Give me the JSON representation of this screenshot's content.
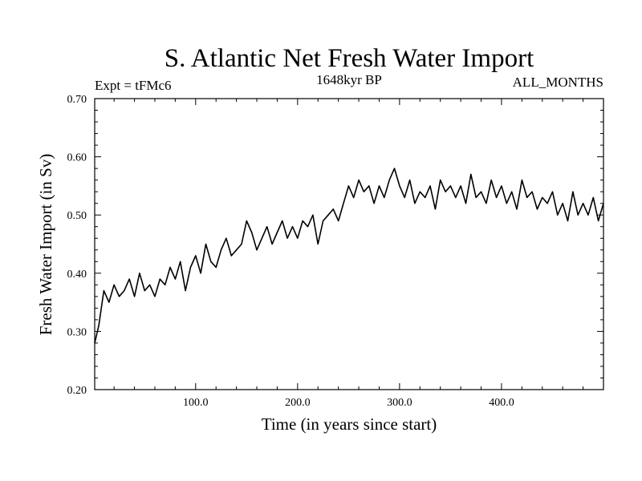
{
  "chart_data": {
    "type": "line",
    "title": "S. Atlantic Net Fresh Water Import",
    "subtitle_left": "Expt = tFMc6",
    "subtitle_center": "1648kyr BP",
    "subtitle_right": "ALL_MONTHS",
    "xlabel": "Time (in years since start)",
    "ylabel": "Fresh Water Import (in Sv)",
    "xlim": [
      1,
      500
    ],
    "ylim": [
      0.2,
      0.7
    ],
    "x_ticks": [
      100,
      200,
      300,
      400
    ],
    "x_tick_labels": [
      "100.0",
      "200.0",
      "300.0",
      "400.0"
    ],
    "y_ticks": [
      0.2,
      0.3,
      0.4,
      0.5,
      0.6,
      0.7
    ],
    "y_tick_labels": [
      "0.20",
      "0.30",
      "0.40",
      "0.50",
      "0.60",
      "0.70"
    ],
    "series": [
      {
        "name": "Fresh Water Import",
        "color": "#000000",
        "x": [
          1,
          5,
          10,
          15,
          20,
          25,
          30,
          35,
          40,
          45,
          50,
          55,
          60,
          65,
          70,
          75,
          80,
          85,
          90,
          95,
          100,
          105,
          110,
          115,
          120,
          125,
          130,
          135,
          140,
          145,
          150,
          155,
          160,
          165,
          170,
          175,
          180,
          185,
          190,
          195,
          200,
          205,
          210,
          215,
          220,
          225,
          230,
          235,
          240,
          245,
          250,
          255,
          260,
          265,
          270,
          275,
          280,
          285,
          290,
          295,
          300,
          305,
          310,
          315,
          320,
          325,
          330,
          335,
          340,
          345,
          350,
          355,
          360,
          365,
          370,
          375,
          380,
          385,
          390,
          395,
          400,
          405,
          410,
          415,
          420,
          425,
          430,
          435,
          440,
          445,
          450,
          455,
          460,
          465,
          470,
          475,
          480,
          485,
          490,
          495,
          500
        ],
        "values": [
          0.28,
          0.31,
          0.37,
          0.35,
          0.38,
          0.36,
          0.37,
          0.39,
          0.36,
          0.4,
          0.37,
          0.38,
          0.36,
          0.39,
          0.38,
          0.41,
          0.39,
          0.42,
          0.37,
          0.41,
          0.43,
          0.4,
          0.45,
          0.42,
          0.41,
          0.44,
          0.46,
          0.43,
          0.44,
          0.45,
          0.49,
          0.47,
          0.44,
          0.46,
          0.48,
          0.45,
          0.47,
          0.49,
          0.46,
          0.48,
          0.46,
          0.49,
          0.48,
          0.5,
          0.45,
          0.49,
          0.5,
          0.51,
          0.49,
          0.52,
          0.55,
          0.53,
          0.56,
          0.54,
          0.55,
          0.52,
          0.55,
          0.53,
          0.56,
          0.58,
          0.55,
          0.53,
          0.56,
          0.52,
          0.54,
          0.53,
          0.55,
          0.51,
          0.56,
          0.54,
          0.55,
          0.53,
          0.55,
          0.52,
          0.57,
          0.53,
          0.54,
          0.52,
          0.56,
          0.53,
          0.55,
          0.52,
          0.54,
          0.51,
          0.56,
          0.53,
          0.54,
          0.51,
          0.53,
          0.52,
          0.54,
          0.5,
          0.52,
          0.49,
          0.54,
          0.5,
          0.52,
          0.5,
          0.53,
          0.49,
          0.52
        ]
      }
    ]
  }
}
